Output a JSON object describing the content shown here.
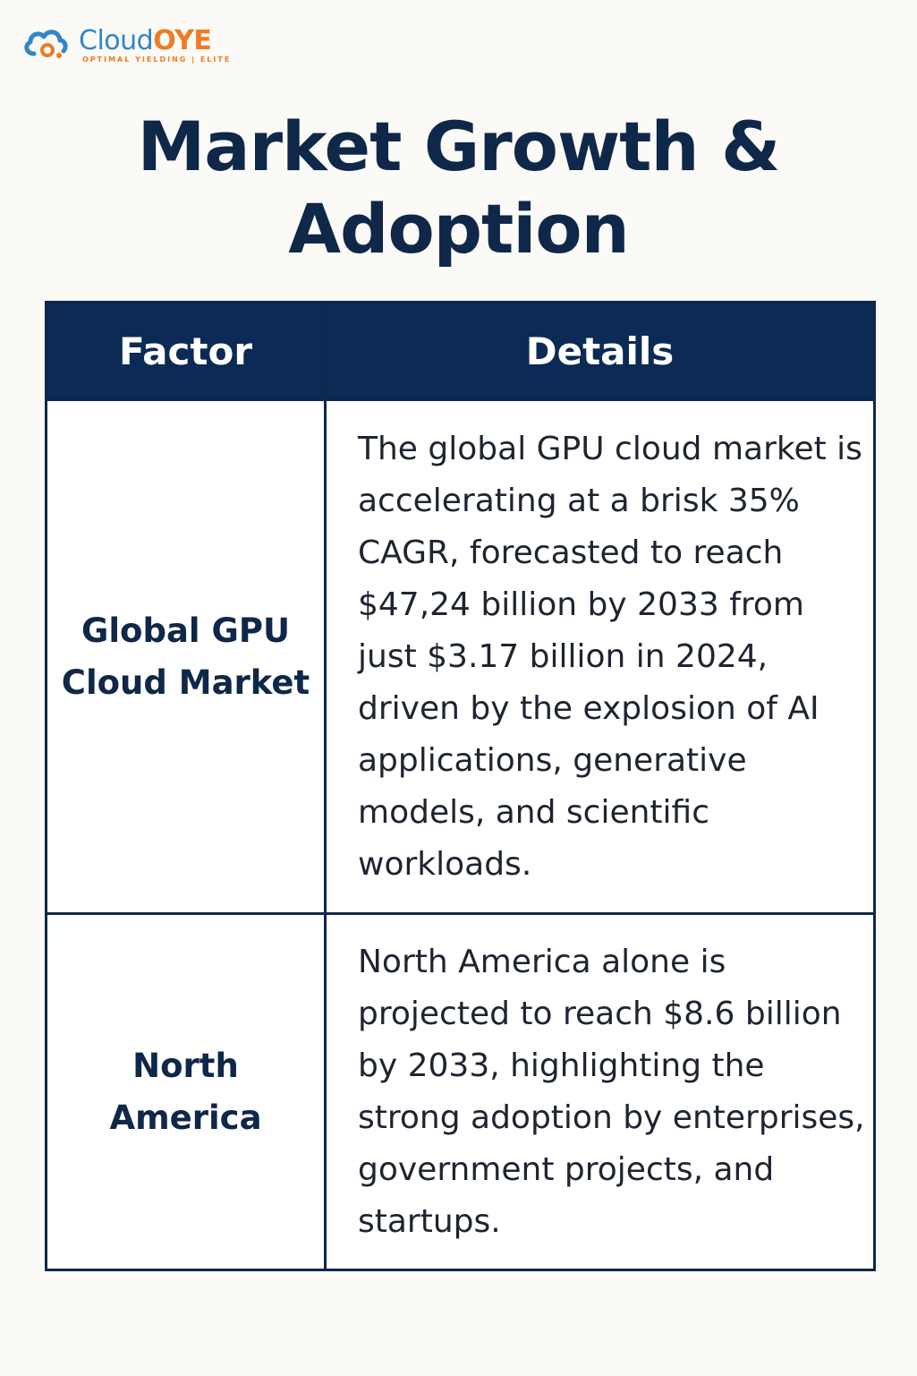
{
  "brand": {
    "name_part1": "Cloud",
    "name_part2": "OYE",
    "tagline": "OPTIMAL  YIELDING | ELITE",
    "logo_icon": "cloud-icon",
    "colors": {
      "blue": "#2f86c8",
      "orange": "#ef7b22"
    }
  },
  "page": {
    "title": "Market Growth & Adoption",
    "title_color": "#0f2748"
  },
  "table": {
    "header_color": "#0b2a55",
    "columns": [
      "Factor",
      "Details"
    ],
    "rows": [
      {
        "factor": "Global GPU Cloud Market",
        "details": "The global GPU cloud market is accelerating at a brisk 35% CAGR, forecasted to reach $47,24 billion by 2033 from just $3.17 billion in 2024, driven by the explosion of AI applications, generative models, and scientific workloads."
      },
      {
        "factor": "North America",
        "details": "North America alone is projected to reach $8.6 billion by 2033, highlighting the strong adoption by enterprises, government projects, and startups."
      }
    ]
  }
}
